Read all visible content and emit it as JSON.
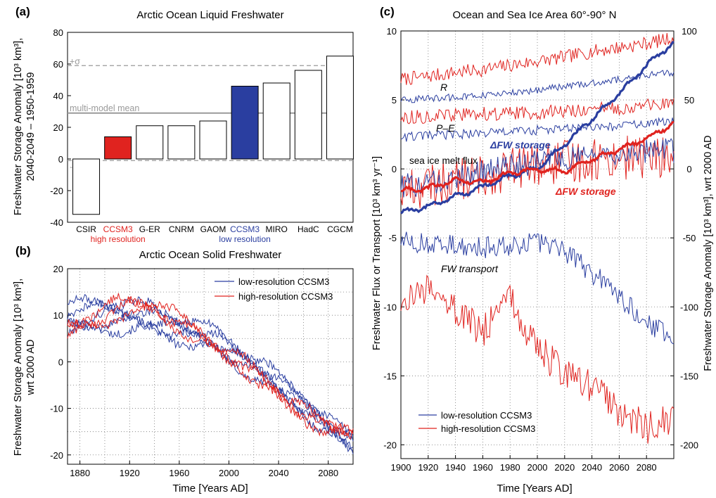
{
  "colors": {
    "red": "#e0231f",
    "blue": "#2a3ea0",
    "grey": "#9a9a9a",
    "fill_red": "#e0231f",
    "fill_blue": "#2a3ea0"
  },
  "chart_data": [
    {
      "panel": "a",
      "panel_label": "(a)",
      "type": "bar",
      "title": "Arctic Ocean Liquid Freshwater",
      "ylabel_line1": "Freshwater Storage Anomaly [10³ km³],",
      "ylabel_line2": "2040-2049 – 1950-1959",
      "ylim": [
        -40,
        80
      ],
      "yticks": [
        "80",
        "60",
        "40",
        "20",
        "0",
        "-20",
        "-40"
      ],
      "categories": [
        "CSIR",
        "CCSM3",
        "G-ER",
        "CNRM",
        "GAOM",
        "CCSM3",
        "MIRO",
        "HadC",
        "CGCM"
      ],
      "category_notes": {
        "1": "high resolution",
        "5": "low resolution"
      },
      "values": [
        -35,
        14,
        21,
        21,
        24,
        46,
        48,
        56,
        65
      ],
      "highlight": {
        "1": "red",
        "5": "blue"
      },
      "reference_lines": [
        {
          "label": "+σ",
          "value": 59,
          "style": "dashed"
        },
        {
          "label": "multi-model mean",
          "value": 29,
          "style": "solid"
        },
        {
          "label": "-σ",
          "value": -1,
          "style": "dashed"
        }
      ]
    },
    {
      "panel": "b",
      "panel_label": "(b)",
      "type": "line",
      "title": "Arctic Ocean Solid Freshwater",
      "xlabel": "Time [Years AD]",
      "ylabel_line1": "Freshwater Storage Anomaly [10³ km³],",
      "ylabel_line2": "wrt 2000 AD",
      "xlim": [
        1870,
        2100
      ],
      "ylim": [
        -22,
        20
      ],
      "xticks": [
        "1880",
        "1920",
        "1960",
        "2000",
        "2040",
        "2080"
      ],
      "yticks": [
        "20",
        "10",
        "0",
        "-10",
        "-20"
      ],
      "grid": true,
      "legend": [
        "low-resolution CCSM3",
        "high-resolution CCSM3"
      ],
      "legend_placement": "top-right",
      "series": [
        {
          "name": "low-resolution CCSM3",
          "members": 5,
          "values_1870_to_2100": [
            9,
            10,
            10,
            9,
            7,
            5,
            1,
            -3,
            -8,
            -13,
            -18
          ]
        },
        {
          "name": "high-resolution CCSM3",
          "members": 3,
          "values_1870_to_2100": [
            7,
            9,
            12,
            12,
            8,
            4,
            0,
            -5,
            -10,
            -14,
            -15
          ]
        }
      ]
    },
    {
      "panel": "c",
      "panel_label": "(c)",
      "type": "line",
      "title": "Ocean and Sea Ice Area 60°-90° N",
      "xlabel": "Time [Years AD]",
      "ylabel_left": "Freshwater Flux or Transport [10³ km³ yr⁻¹]",
      "ylabel_right": "Freshwater Storage Anomaly [10³ km³], wrt 2000 AD",
      "xlim": [
        1900,
        2100
      ],
      "ylim_left": [
        -21,
        10
      ],
      "ylim_right": [
        -210,
        100
      ],
      "xticks": [
        "1900",
        "1920",
        "1940",
        "1960",
        "1980",
        "2000",
        "2020",
        "2040",
        "2060",
        "2080"
      ],
      "yticks_left": [
        "10",
        "5",
        "0",
        "-5",
        "-10",
        "-15",
        "-20"
      ],
      "yticks_right": [
        "100",
        "50",
        "0",
        "-50",
        "-100",
        "-150",
        "-200"
      ],
      "grid": true,
      "annotations": [
        "R",
        "P–E",
        "sea ice melt flux",
        "ΔFW storage",
        "ΔFW storage",
        "FW transport"
      ],
      "legend": [
        "low-resolution CCSM3",
        "high-resolution CCSM3"
      ],
      "legend_placement": "bottom-left",
      "series": [
        {
          "name": "R high",
          "color": "red",
          "values_1900_to_2100": [
            6.5,
            6.7,
            7.0,
            7.2,
            7.5,
            7.8,
            8.1,
            8.5,
            8.8,
            9.1,
            9.5
          ]
        },
        {
          "name": "R low",
          "color": "blue",
          "values_1900_to_2100": [
            5.0,
            5.1,
            5.2,
            5.3,
            5.5,
            5.7,
            6.0,
            6.2,
            6.5,
            6.8,
            7.0
          ]
        },
        {
          "name": "P-E high",
          "color": "red",
          "values_1900_to_2100": [
            3.7,
            3.8,
            3.9,
            4.0,
            4.0,
            4.1,
            4.2,
            4.3,
            4.4,
            4.6,
            4.7
          ]
        },
        {
          "name": "P-E low",
          "color": "blue",
          "values_1900_to_2100": [
            2.3,
            2.4,
            2.5,
            2.6,
            2.7,
            2.8,
            2.9,
            3.0,
            3.1,
            3.3,
            3.4
          ]
        },
        {
          "name": "sea ice melt high",
          "color": "red",
          "values_1900_to_2100": [
            -1.5,
            -1.2,
            -0.8,
            -0.5,
            0.0,
            0.3,
            0.5,
            0.7,
            0.8,
            0.9,
            0.8
          ]
        },
        {
          "name": "sea ice melt low",
          "color": "blue",
          "values_1900_to_2100": [
            -1.3,
            -1.0,
            -0.6,
            -0.2,
            0.2,
            0.5,
            0.8,
            1.0,
            1.2,
            1.3,
            1.3
          ]
        },
        {
          "name": "FW transport low",
          "color": "blue",
          "values_1900_to_2100": [
            -5.3,
            -5.5,
            -5.6,
            -5.7,
            -5.5,
            -5.3,
            -6.0,
            -7.5,
            -9.3,
            -11.0,
            -12.5
          ]
        },
        {
          "name": "FW transport high",
          "color": "red",
          "values_1900_to_2100": [
            -10.0,
            -8.5,
            -10.3,
            -11.8,
            -9.5,
            -13.0,
            -14.8,
            -15.8,
            -17.5,
            -18.8,
            -18.0
          ]
        },
        {
          "name": "ΔFW storage low (right axis)",
          "color": "blue",
          "axis": "right",
          "values_1900_to_2100": [
            -32,
            -27,
            -20,
            -13,
            -5,
            0,
            18,
            36,
            55,
            75,
            92
          ]
        },
        {
          "name": "ΔFW storage high (right axis)",
          "color": "red",
          "axis": "right",
          "values_1900_to_2100": [
            -16,
            -14,
            -8,
            -10,
            -3,
            0,
            -2,
            7,
            14,
            22,
            33
          ]
        }
      ]
    }
  ],
  "legend_c": {
    "low": "low-resolution CCSM3",
    "high": "high-resolution CCSM3"
  }
}
